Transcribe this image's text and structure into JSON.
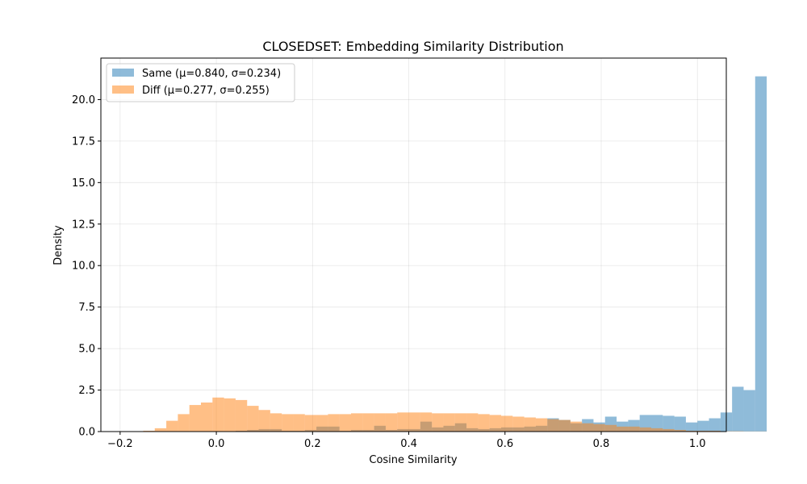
{
  "chart_data": {
    "type": "histogram",
    "title": "CLOSEDSET: Embedding Similarity Distribution",
    "xlabel": "Cosine Similarity",
    "ylabel": "Density",
    "xlim": [
      -0.24,
      1.06
    ],
    "ylim": [
      0,
      22.5
    ],
    "xticks": [
      -0.2,
      0.0,
      0.2,
      0.4,
      0.6,
      0.8,
      1.0
    ],
    "xtick_labels": [
      "−0.2",
      "0.0",
      "0.2",
      "0.4",
      "0.6",
      "0.8",
      "1.0"
    ],
    "yticks": [
      0.0,
      2.5,
      5.0,
      7.5,
      10.0,
      12.5,
      15.0,
      17.5,
      20.0
    ],
    "ytick_labels": [
      "0.0",
      "2.5",
      "5.0",
      "7.5",
      "10.0",
      "12.5",
      "15.0",
      "17.5",
      "20.0"
    ],
    "grid": true,
    "legend_position": "top-left",
    "bin_edges_start": -0.2,
    "bin_width": 0.024,
    "series": [
      {
        "name": "Same (μ=0.840, σ=0.234)",
        "color": "#1f77b4",
        "alpha": 0.5,
        "values": [
          0,
          0,
          0,
          0,
          0,
          0,
          0,
          0,
          0,
          0,
          0.05,
          0.1,
          0.15,
          0.15,
          0.05,
          0.05,
          0.1,
          0.3,
          0.3,
          0.05,
          0.1,
          0.1,
          0.35,
          0.1,
          0.15,
          0.15,
          0.6,
          0.25,
          0.35,
          0.5,
          0.2,
          0.15,
          0.2,
          0.25,
          0.25,
          0.3,
          0.35,
          0.8,
          0.7,
          0.5,
          0.75,
          0.55,
          0.9,
          0.6,
          0.7,
          1.0,
          1.0,
          0.95,
          0.9,
          0.55,
          0.65,
          0.8,
          1.15,
          2.7,
          2.5,
          21.4
        ]
      },
      {
        "name": "Diff (μ=0.277, σ=0.255)",
        "color": "#ff7f0e",
        "alpha": 0.5,
        "values": [
          0,
          0.02,
          0.05,
          0.2,
          0.65,
          1.05,
          1.6,
          1.75,
          2.05,
          2.0,
          1.9,
          1.55,
          1.3,
          1.1,
          1.05,
          1.05,
          1.0,
          1.0,
          1.05,
          1.05,
          1.1,
          1.1,
          1.1,
          1.1,
          1.15,
          1.15,
          1.15,
          1.1,
          1.1,
          1.1,
          1.1,
          1.05,
          1.0,
          0.95,
          0.9,
          0.85,
          0.8,
          0.75,
          0.7,
          0.6,
          0.5,
          0.45,
          0.4,
          0.3,
          0.3,
          0.25,
          0.2,
          0.15,
          0.1,
          0.05,
          0.05,
          0.05,
          0.02,
          0.02,
          0.01,
          0.01
        ]
      }
    ]
  }
}
